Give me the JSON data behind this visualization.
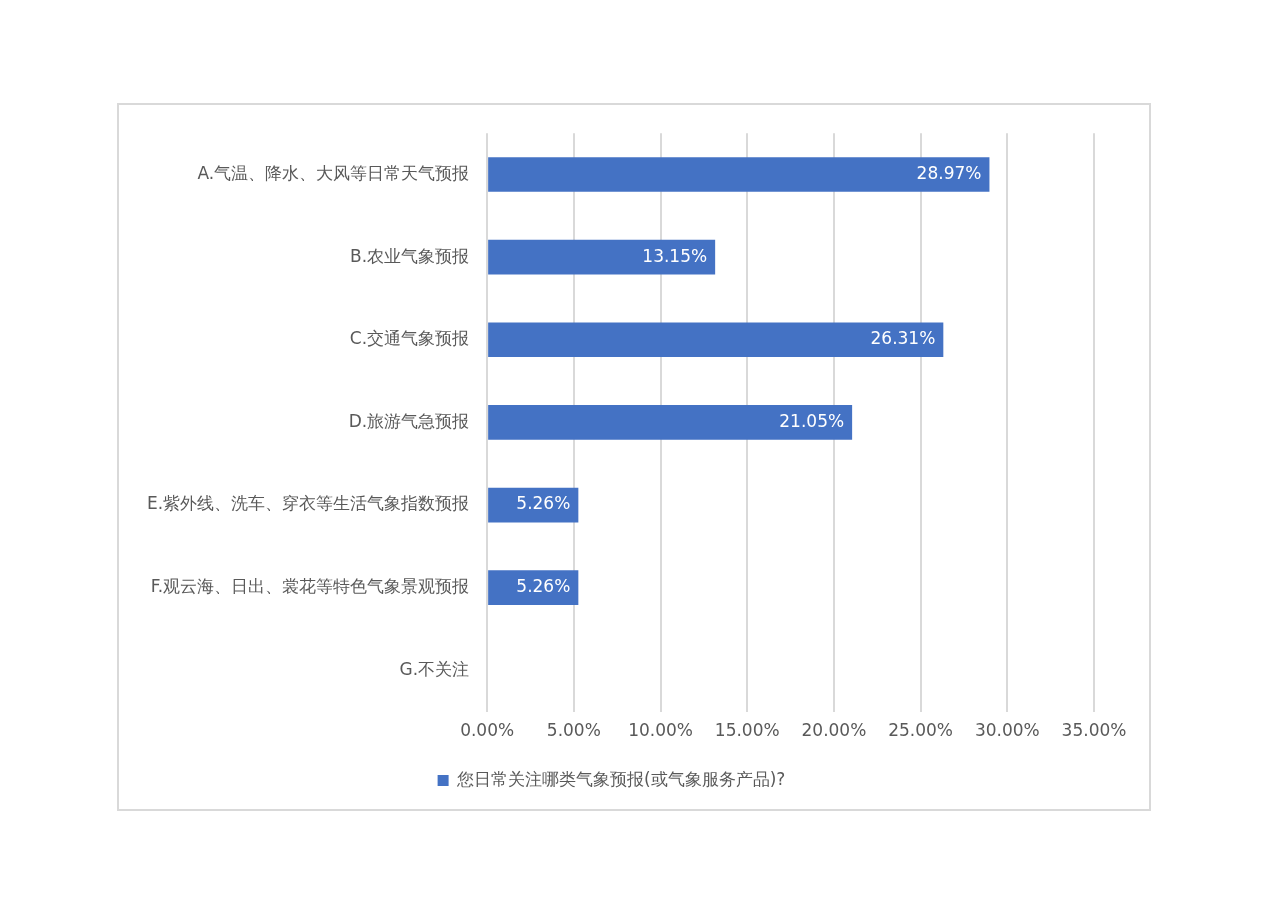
{
  "chart_data": {
    "type": "bar",
    "orientation": "horizontal",
    "categories": [
      "A.气温、降水、大风等日常天气预报",
      "B.农业气象预报",
      "C.交通气象预报",
      "D.旅游气急预报",
      "E.紫外线、洗车、穿衣等生活气象指数预报",
      "F.观云海、日出、裳花等特色气象景观预报",
      "G.不关注"
    ],
    "series": [
      {
        "name": "您日常关注哪类气象预报(或气象服务产品)?",
        "color": "#4472c4",
        "values": [
          28.97,
          13.15,
          26.31,
          21.05,
          5.26,
          5.26,
          0
        ],
        "value_labels": [
          "28.97%",
          "13.15%",
          "26.31%",
          "21.05%",
          "5.26%",
          "5.26%",
          null
        ]
      }
    ],
    "xlim": [
      0,
      35
    ],
    "xticks": [
      {
        "value": 0,
        "label": "0.00%"
      },
      {
        "value": 5,
        "label": "5.00%"
      },
      {
        "value": 10,
        "label": "10.00%"
      },
      {
        "value": 15,
        "label": "15.00%"
      },
      {
        "value": 20,
        "label": "20.00%"
      },
      {
        "value": 25,
        "label": "25.00%"
      },
      {
        "value": 30,
        "label": "30.00%"
      },
      {
        "value": 35,
        "label": "35.00%"
      }
    ],
    "grid": "x",
    "legend": "bottom"
  }
}
